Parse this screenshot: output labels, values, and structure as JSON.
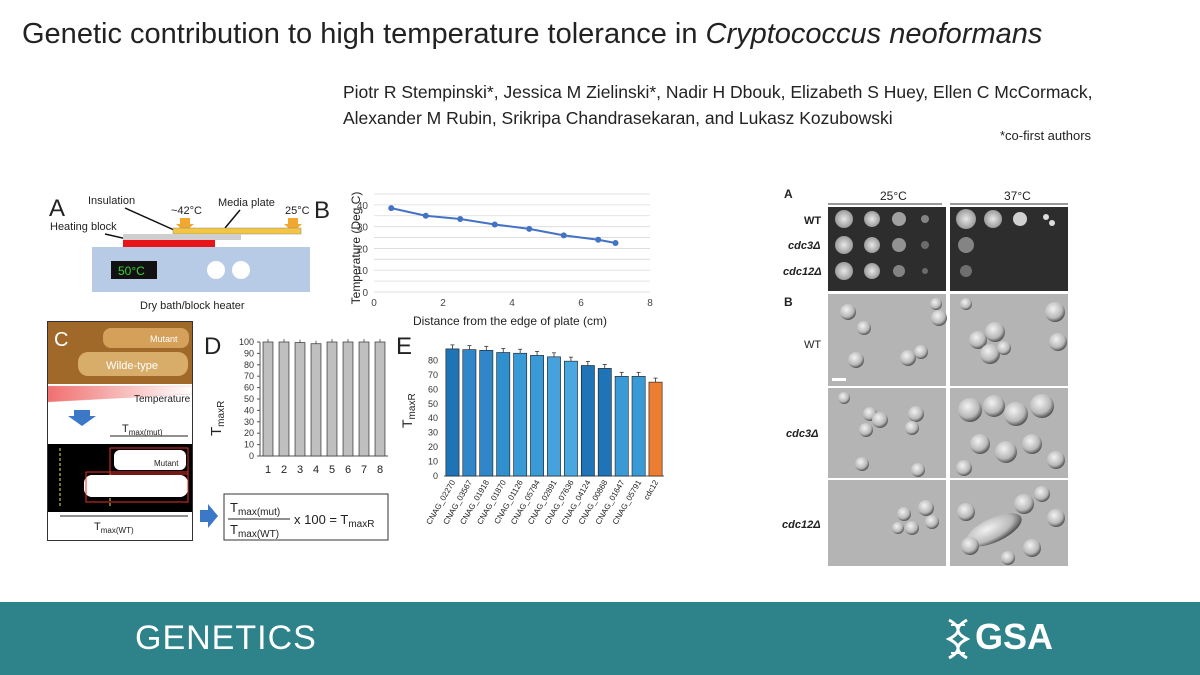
{
  "title_main": "Genetic contribution to high temperature tolerance in ",
  "title_species": "Cryptococcus neoformans",
  "authors_line1": "Piotr R Stempinski*, Jessica M Zielinski*, Nadir H Dbouk, Elizabeth S Huey, Ellen C McCormack,",
  "authors_line2": "Alexander M Rubin, Srikripa Chandrasekaran, and Lukasz Kozubowski",
  "cofirst_note": "*co-first authors",
  "panel_a": {
    "letter": "A",
    "insulation": "Insulation",
    "temp_hot": "~42°C",
    "media_plate": "Media plate",
    "temp_cool": "25°C",
    "heating_block": "Heating block",
    "display": "50°C",
    "caption": "Dry bath/block heater"
  },
  "panel_c": {
    "letter": "C",
    "mutant": "Mutant",
    "wildtype": "Wilde-type",
    "temperature": "Temperature",
    "tmax_mut": "T",
    "tmax_mut_sub": "max(mut)",
    "tmax_wt": "T",
    "tmax_wt_sub": "max(WT)",
    "formula_times": "x 100 = T",
    "formula_sub": "maxR"
  },
  "panel_f": {
    "letter_a": "A",
    "letter_b": "B",
    "temp1": "25°C",
    "temp2": "37°C",
    "rows": [
      "WT",
      "cdc3Δ",
      "cdc12Δ"
    ],
    "scale_bar": ""
  },
  "footer": {
    "journal": "GENETICS",
    "society": "GSA"
  },
  "chart_data": [
    {
      "type": "line",
      "letter": "B",
      "xlabel": "Distance from the edge of plate (cm)",
      "ylabel": "Temperature (Deg C)",
      "xlim": [
        0,
        8
      ],
      "ylim": [
        0,
        45
      ],
      "xticks": [
        0,
        2,
        4,
        6,
        8
      ],
      "yticks": [
        0,
        5,
        10,
        15,
        20,
        25,
        30,
        35,
        40,
        45
      ],
      "x": [
        0.5,
        1.5,
        2.5,
        3.5,
        4.5,
        5.5,
        6.5,
        7
      ],
      "y": [
        38.5,
        35,
        33.5,
        31,
        29,
        26,
        24,
        22.5
      ],
      "color": "#4472c4",
      "grid": true
    },
    {
      "type": "bar",
      "letter": "D",
      "ylabel": "T",
      "ylabel_sub": "maxR",
      "categories": [
        "1",
        "2",
        "3",
        "4",
        "5",
        "6",
        "7",
        "8"
      ],
      "values": [
        100,
        100,
        99.5,
        98.5,
        100,
        100,
        100,
        100
      ],
      "ylim": [
        0,
        100
      ],
      "yticks": [
        0,
        10,
        20,
        30,
        40,
        50,
        60,
        70,
        80,
        90,
        100
      ],
      "color": "#bfbfbf"
    },
    {
      "type": "bar",
      "letter": "E",
      "ylabel": "T",
      "ylabel_sub": "maxR",
      "categories": [
        "CNAG_02270",
        "CNAG_03567",
        "CNAG_01918",
        "CNAG_01870",
        "CNAG_01126",
        "CNAG_05794",
        "CNAG_02891",
        "CNAG_07636",
        "CNAG_04124",
        "CNAG_00868",
        "CNAG_01647",
        "CNAG_05791",
        "cdc12"
      ],
      "values": [
        88,
        87.5,
        87,
        85.5,
        85,
        83.5,
        82.5,
        79.5,
        76.5,
        74.5,
        69,
        69,
        65
      ],
      "ylim": [
        0,
        90
      ],
      "yticks": [
        0,
        10,
        20,
        30,
        40,
        50,
        60,
        70,
        80
      ],
      "colors": [
        "#1f73b7",
        "#2f87c9",
        "#2f87c9",
        "#3090cf",
        "#3a9ad6",
        "#3a9ad6",
        "#45a2dc",
        "#4aa8e0",
        "#1f73b7",
        "#1f73b7",
        "#3a9ad6",
        "#3a9ad6",
        "#ed7d31"
      ]
    }
  ]
}
